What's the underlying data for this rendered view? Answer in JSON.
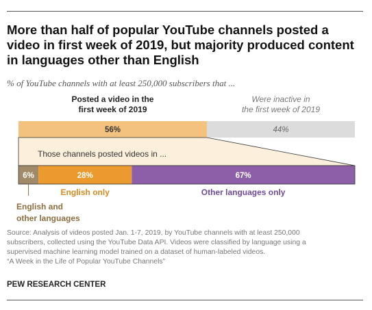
{
  "title": "More than half of popular YouTube channels posted a video in first week of 2019, but majority produced content in languages other than English",
  "subtitle": "% of YouTube channels with at least 250,000 subscribers that ...",
  "chart_data": {
    "type": "bar",
    "top_bar": {
      "segments": [
        {
          "label_line1": "Posted a video in the",
          "label_line2": "first week of 2019",
          "value": 56,
          "value_label": "56%",
          "color": "#f2c27e"
        },
        {
          "label_line1": "Were inactive in",
          "label_line2": "the first week of 2019",
          "value": 44,
          "value_label": "44%",
          "color": "#dcdcdc"
        }
      ]
    },
    "callout": "Those channels posted videos in ...",
    "callout_fill": "#fcefdc",
    "bottom_bar": {
      "segments": [
        {
          "label_line1": "English and",
          "label_line2": "other languages",
          "value": 6,
          "value_label": "6%",
          "color": "#a08a68",
          "label_color": "#8c6d3f"
        },
        {
          "label_line1": "English only",
          "label_line2": "",
          "value": 28,
          "value_label": "28%",
          "color": "#eb9a2d",
          "label_color": "#d48a1e"
        },
        {
          "label_line1": "Other languages only",
          "label_line2": "",
          "value": 67,
          "value_label": "67%",
          "color": "#8c5fa8",
          "label_color": "#6f4a9a"
        }
      ]
    }
  },
  "footer": {
    "source_lines": [
      "Source: Analysis of videos posted Jan. 1-7, 2019, by YouTube channels with at least 250,000",
      "subscribers, collected using the YouTube Data API. Videos were classified by language using a",
      "supervised machine learning model trained on a dataset of human-labeled videos.",
      "“A Week in the Life of Popular YouTube Channels”"
    ],
    "credit": "PEW RESEARCH CENTER"
  }
}
